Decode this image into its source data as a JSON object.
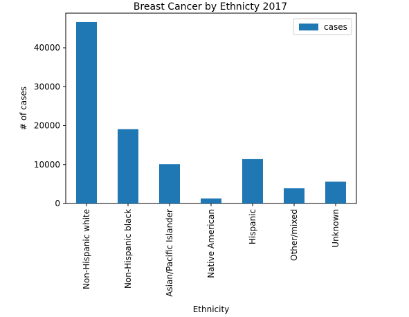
{
  "chart_data": {
    "type": "bar",
    "title": "Breast Cancer by Ethnicty 2017",
    "xlabel": "Ethnicity",
    "ylabel": "# of cases",
    "categories": [
      "Non-Hispanic white",
      "Non-Hispanic black",
      "Asian/Pacific Islander",
      "Native American",
      "Hispanic",
      "Other/mixed",
      "Unknown"
    ],
    "series": [
      {
        "name": "cases",
        "values": [
          46600,
          19100,
          10100,
          1300,
          11400,
          3900,
          5600
        ],
        "color": "#1f77b4"
      }
    ],
    "ylim": [
      0,
      48900
    ],
    "yticks": [
      0,
      10000,
      20000,
      30000,
      40000
    ],
    "legend": "top-right",
    "grid": false
  }
}
